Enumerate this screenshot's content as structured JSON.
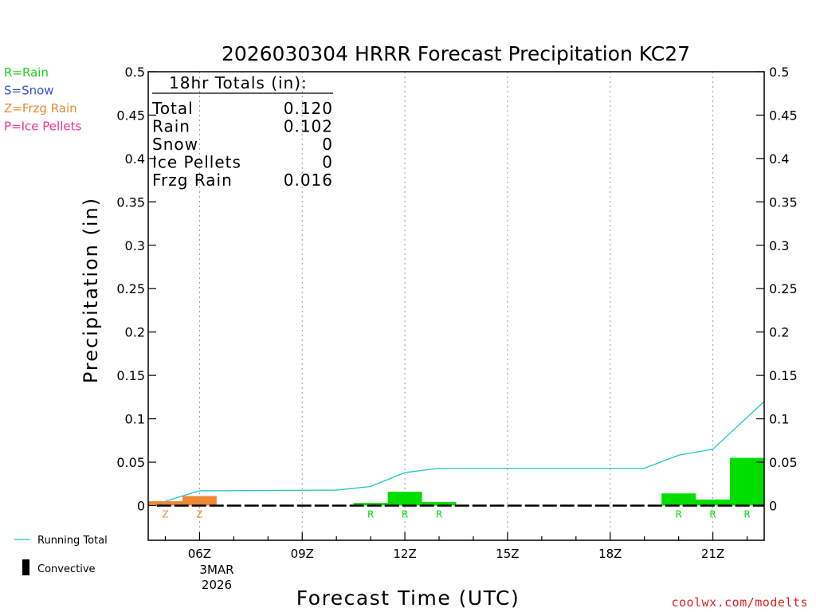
{
  "chart_data": {
    "type": "bar",
    "title": "2026030304 HRRR Forecast Precipitation KC27",
    "xlabel": "Forecast Time (UTC)",
    "ylabel": "Precipitation (in)",
    "ylim": [
      -0.04,
      0.5
    ],
    "yticks": [
      0,
      0.05,
      0.1,
      0.15,
      0.2,
      0.25,
      0.3,
      0.35,
      0.4,
      0.45,
      0.5
    ],
    "ytick_labels": [
      "0",
      "0.05",
      "0.1",
      "0.15",
      "0.2",
      "0.25",
      "0.3",
      "0.35",
      "0.4",
      "0.45",
      "0.5"
    ],
    "xlim": [
      4.5,
      22.5
    ],
    "xticks": [
      6,
      9,
      12,
      15,
      18,
      21
    ],
    "xtick_labels": [
      "06Z",
      "09Z",
      "12Z",
      "15Z",
      "18Z",
      "21Z"
    ],
    "date_label": [
      "3MAR",
      "2026"
    ],
    "grid": "vertical dotted",
    "series_legend": [
      {
        "label": "R=Rain",
        "color": "#22cc22"
      },
      {
        "label": "S=Snow",
        "color": "#3355dd"
      },
      {
        "label": "Z=Frzg Rain",
        "color": "#ee8833"
      },
      {
        "label": "P=Ice Pellets",
        "color": "#ee3399"
      }
    ],
    "bars": [
      {
        "hour": 5,
        "value": 0.005,
        "type": "Z",
        "color": "#ee8833"
      },
      {
        "hour": 6,
        "value": 0.011,
        "type": "Z",
        "color": "#ee8833"
      },
      {
        "hour": 11,
        "value": 0.003,
        "type": "R",
        "color": "#00dd00"
      },
      {
        "hour": 12,
        "value": 0.016,
        "type": "R",
        "color": "#00dd00"
      },
      {
        "hour": 13,
        "value": 0.004,
        "type": "R",
        "color": "#00dd00"
      },
      {
        "hour": 20,
        "value": 0.014,
        "type": "R",
        "color": "#00dd00"
      },
      {
        "hour": 21,
        "value": 0.007,
        "type": "R",
        "color": "#00dd00"
      },
      {
        "hour": 22,
        "value": 0.055,
        "type": "R",
        "color": "#00dd00"
      }
    ],
    "running_total": {
      "name": "Running Total",
      "color": "#22c4c4",
      "x": [
        5,
        6,
        7,
        8,
        9,
        10,
        11,
        12,
        13,
        14,
        15,
        16,
        17,
        18,
        19,
        20,
        21,
        22.5
      ],
      "y": [
        0.005,
        0.017,
        0.0172,
        0.0174,
        0.0176,
        0.0178,
        0.022,
        0.038,
        0.043,
        0.043,
        0.043,
        0.043,
        0.043,
        0.043,
        0.043,
        0.058,
        0.065,
        0.12
      ]
    },
    "convective": {
      "label": "Convective",
      "values": "all 0"
    },
    "totals_box": {
      "heading": "18hr Totals (in):",
      "rows": [
        {
          "label": "Total",
          "value": "0.120"
        },
        {
          "label": "Rain",
          "value": "0.102"
        },
        {
          "label": "Snow",
          "value": "0"
        },
        {
          "label": "Ice Pellets",
          "value": "0"
        },
        {
          "label": "Frzg Rain",
          "value": "0.016"
        }
      ]
    },
    "credit": "coolwx.com/modelts"
  }
}
